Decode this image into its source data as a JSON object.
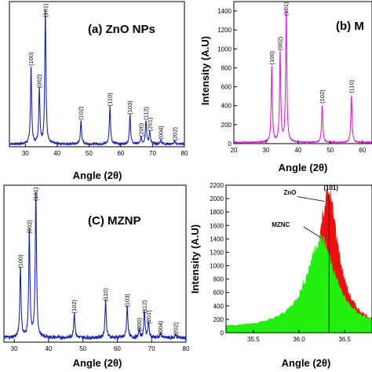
{
  "chart_data": [
    {
      "id": "a",
      "type": "line",
      "title": "(a) ZnO NPs",
      "xlabel": "Angle (2θ)",
      "ylabel": "",
      "xlim": [
        25,
        80
      ],
      "xticks": [
        30,
        40,
        50,
        60,
        70,
        80
      ],
      "ylim": [
        0,
        1
      ],
      "yticks": [],
      "color": "#1c27a8",
      "grid": false,
      "peaks": [
        {
          "x": 31.8,
          "y": 0.56,
          "label": "(100)"
        },
        {
          "x": 34.4,
          "y": 0.4,
          "label": "(002)"
        },
        {
          "x": 36.3,
          "y": 0.96,
          "label": "(101)"
        },
        {
          "x": 47.5,
          "y": 0.17,
          "label": "(102)"
        },
        {
          "x": 56.6,
          "y": 0.27,
          "label": "(110)"
        },
        {
          "x": 62.9,
          "y": 0.21,
          "label": "(103)"
        },
        {
          "x": 66.4,
          "y": 0.05,
          "label": "(200)"
        },
        {
          "x": 67.9,
          "y": 0.17,
          "label": "(112)"
        },
        {
          "x": 69.1,
          "y": 0.09,
          "label": "(201)"
        },
        {
          "x": 72.6,
          "y": 0.03,
          "label": "(004)"
        },
        {
          "x": 77.0,
          "y": 0.02,
          "label": "(202)"
        }
      ]
    },
    {
      "id": "b",
      "type": "line",
      "title": "(b) M",
      "xlabel": "Angle (2θ)",
      "ylabel": "Intensity (A.U)",
      "xlim": [
        20,
        63
      ],
      "xticks": [
        20,
        30,
        40,
        50,
        60
      ],
      "ylim": [
        0,
        1450
      ],
      "yticks": [
        0,
        200,
        400,
        600,
        800,
        1000,
        1200,
        1400
      ],
      "color": "#e020d8",
      "grid": false,
      "peaks": [
        {
          "x": 31.8,
          "y": 800,
          "label": "(100)"
        },
        {
          "x": 34.4,
          "y": 950,
          "label": "(002)"
        },
        {
          "x": 36.3,
          "y": 1400,
          "label": "(101)"
        },
        {
          "x": 47.5,
          "y": 390,
          "label": "(102)"
        },
        {
          "x": 56.6,
          "y": 500,
          "label": "(110)"
        }
      ]
    },
    {
      "id": "c",
      "type": "line",
      "title": "(C) MZNP",
      "xlabel": "Angle (2θ)",
      "ylabel": "",
      "xlim": [
        27,
        80
      ],
      "xticks": [
        30,
        40,
        50,
        60,
        70,
        80
      ],
      "ylim": [
        0,
        1
      ],
      "yticks": [],
      "color": "#1c27a8",
      "grid": false,
      "peaks": [
        {
          "x": 31.8,
          "y": 0.47,
          "label": "(100)"
        },
        {
          "x": 34.4,
          "y": 0.7,
          "label": "(002)"
        },
        {
          "x": 36.3,
          "y": 0.96,
          "label": "(101)"
        },
        {
          "x": 47.5,
          "y": 0.17,
          "label": "(102)"
        },
        {
          "x": 56.6,
          "y": 0.25,
          "label": "(110)"
        },
        {
          "x": 62.9,
          "y": 0.21,
          "label": "(103)"
        },
        {
          "x": 66.4,
          "y": 0.05,
          "label": "(200)"
        },
        {
          "x": 67.9,
          "y": 0.17,
          "label": "(112)"
        },
        {
          "x": 69.1,
          "y": 0.1,
          "label": "(201)"
        },
        {
          "x": 72.6,
          "y": 0.03,
          "label": "(004)"
        },
        {
          "x": 77.0,
          "y": 0.02,
          "label": "(202)"
        }
      ]
    },
    {
      "id": "d",
      "type": "area",
      "title": "",
      "xlabel": "Angle (2θ)",
      "ylabel": "Intensity (A.U)",
      "xlim": [
        35.2,
        36.8
      ],
      "xticks": [
        35.5,
        36.0,
        36.5
      ],
      "ylim": [
        0,
        2200
      ],
      "yticks": [
        0,
        200,
        400,
        600,
        800,
        1000,
        1200,
        1400,
        1600,
        1800,
        2000,
        2200
      ],
      "grid": false,
      "series": [
        {
          "name": "ZnO",
          "color": "#ee1010",
          "peak_x": 36.32,
          "peak_y": 2050,
          "width": 0.17,
          "base": 70
        },
        {
          "name": "MZNC",
          "color": "#22ee10",
          "peak_x": 36.24,
          "peak_y": 1380,
          "width": 0.24,
          "base": 60
        }
      ],
      "annotations": [
        {
          "text": "ZnO",
          "x": 35.9,
          "y": 2060
        },
        {
          "text": "(101)",
          "x": 36.35,
          "y": 2130
        },
        {
          "text": "MZNC",
          "x": 35.8,
          "y": 1580
        }
      ],
      "vline_x": 36.33
    }
  ]
}
